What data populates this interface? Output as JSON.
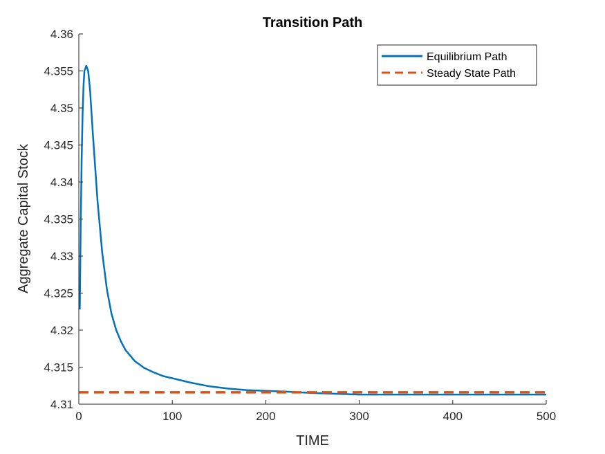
{
  "chart_data": {
    "type": "line",
    "title": "Transition Path",
    "xlabel": "TIME",
    "ylabel": "Aggregate Capital Stock",
    "xlim": [
      0,
      500
    ],
    "ylim": [
      4.31,
      4.36
    ],
    "x_ticks": [
      "0",
      "100",
      "200",
      "300",
      "400",
      "500"
    ],
    "y_ticks": [
      "4.31",
      "4.315",
      "4.32",
      "4.325",
      "4.33",
      "4.335",
      "4.34",
      "4.345",
      "4.35",
      "4.355",
      "4.36"
    ],
    "grid": false,
    "legend_position": "top-right",
    "series": [
      {
        "name": "Equilibrium Path",
        "color": "#0072BD",
        "style": "solid",
        "x": [
          1,
          2,
          3,
          4,
          5,
          6,
          8,
          10,
          12,
          15,
          20,
          25,
          30,
          35,
          40,
          45,
          50,
          60,
          70,
          80,
          90,
          100,
          120,
          140,
          160,
          180,
          200,
          220,
          250,
          275,
          300,
          350,
          400,
          450,
          500
        ],
        "y": [
          4.3228,
          4.334,
          4.343,
          4.349,
          4.353,
          4.355,
          4.3557,
          4.355,
          4.3525,
          4.3465,
          4.3375,
          4.3305,
          4.3255,
          4.3222,
          4.32,
          4.3185,
          4.3173,
          4.3158,
          4.3149,
          4.3143,
          4.3138,
          4.3135,
          4.3129,
          4.3124,
          4.3121,
          4.3119,
          4.3118,
          4.3117,
          4.3115,
          4.3114,
          4.3113,
          4.3113,
          4.3113,
          4.3113,
          4.3113
        ]
      },
      {
        "name": "Steady State Path",
        "color": "#D95319",
        "style": "dashed",
        "x": [
          0,
          500
        ],
        "y": [
          4.3116,
          4.3116
        ]
      }
    ]
  }
}
